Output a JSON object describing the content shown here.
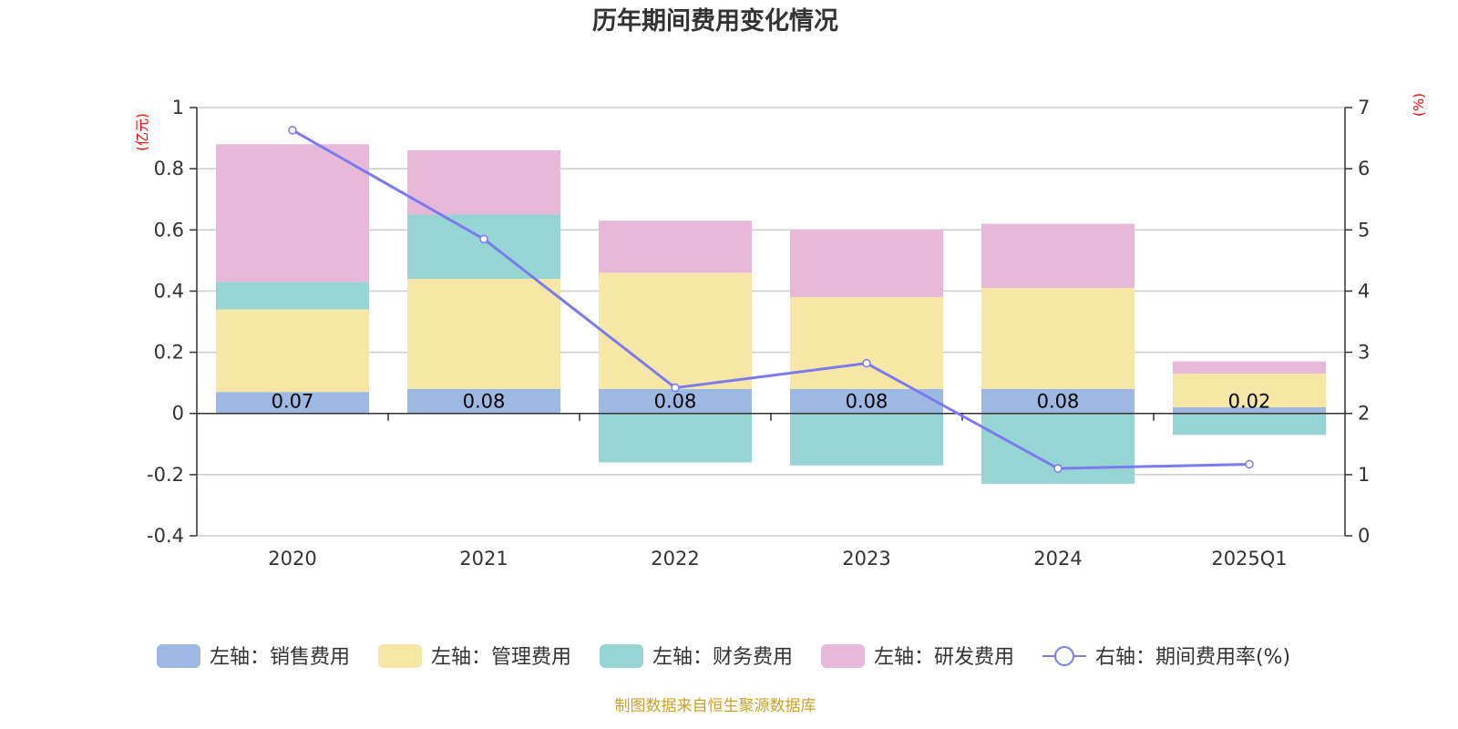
{
  "chart_data": {
    "type": "bar",
    "title": "历年期间费用变化情况",
    "categories": [
      "2020",
      "2021",
      "2022",
      "2023",
      "2024",
      "2025Q1"
    ],
    "left_axis": {
      "unit": "(亿元)",
      "ylim": [
        -0.4,
        1
      ],
      "ticks": [
        "-0.4",
        "-0.2",
        "0",
        "0.2",
        "0.4",
        "0.6",
        "0.8",
        "1"
      ]
    },
    "right_axis": {
      "unit": "(%)",
      "ylim": [
        0,
        7
      ],
      "ticks": [
        "0",
        "1",
        "2",
        "3",
        "4",
        "5",
        "6",
        "7"
      ]
    },
    "series": [
      {
        "name": "左轴：销售费用",
        "type": "bar",
        "stack": true,
        "color": "#9db8e2",
        "values": [
          0.07,
          0.08,
          0.08,
          0.08,
          0.08,
          0.02
        ],
        "labels": [
          "0.07",
          "0.08",
          "0.08",
          "0.08",
          "0.08",
          "0.02"
        ]
      },
      {
        "name": "左轴：管理费用",
        "type": "bar",
        "stack": true,
        "color": "#f7e7a6",
        "values": [
          0.27,
          0.36,
          0.38,
          0.3,
          0.33,
          0.11
        ]
      },
      {
        "name": "左轴：财务费用",
        "type": "bar",
        "stack": true,
        "color": "#97d4d4",
        "values": [
          0.09,
          0.21,
          -0.16,
          -0.17,
          -0.23,
          -0.07
        ]
      },
      {
        "name": "左轴：研发费用",
        "type": "bar",
        "stack": true,
        "color": "#e8b8d8",
        "values": [
          0.45,
          0.21,
          0.17,
          0.22,
          0.21,
          0.04
        ]
      },
      {
        "name": "右轴：期间费用率(%)",
        "type": "line",
        "axis": "right",
        "color": "#7b7bef",
        "values": [
          6.63,
          4.85,
          2.42,
          2.82,
          1.1,
          1.17
        ]
      }
    ],
    "grid": true,
    "legend": "bottom"
  },
  "footer": {
    "source": "制图数据来自恒生聚源数据库"
  }
}
